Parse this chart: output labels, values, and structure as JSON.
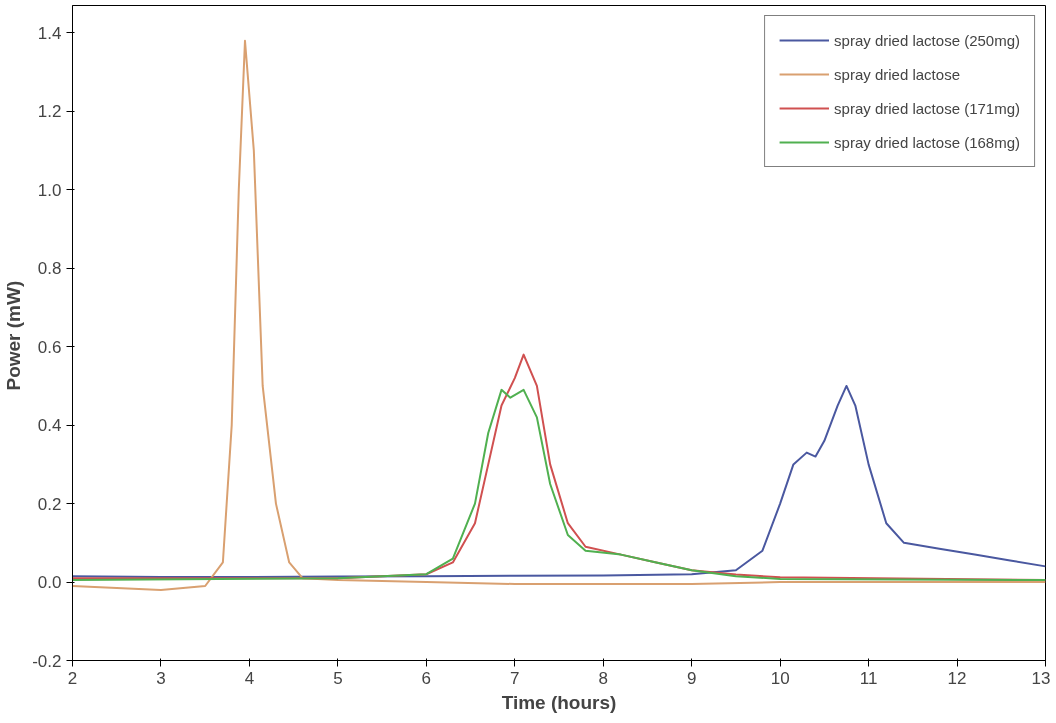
{
  "chart_data": {
    "type": "line",
    "xlabel": "Time (hours)",
    "ylabel": "Power  (mW)",
    "xlim": [
      2,
      13
    ],
    "ylim": [
      -0.2,
      1.47
    ],
    "xticks": [
      2,
      3,
      4,
      5,
      6,
      7,
      8,
      9,
      10,
      11,
      12,
      13
    ],
    "yticks": [
      {
        "value": -0.2,
        "label": "-0.2"
      },
      {
        "value": 0,
        "label": "0.0"
      },
      {
        "value": 0.2,
        "label": "0.2"
      },
      {
        "value": 0.4,
        "label": "0.4"
      },
      {
        "value": 0.6,
        "label": "0.6"
      },
      {
        "value": 0.8,
        "label": "0.8"
      },
      {
        "value": 1.0,
        "label": "1.0"
      },
      {
        "value": 1.2,
        "label": "1.2"
      },
      {
        "value": 1.4,
        "label": "1.4"
      }
    ],
    "grid": false,
    "legend": "top right",
    "marker": "none",
    "line_style": "solid",
    "series": [
      {
        "name": "spray dried lactose (250mg)",
        "color": "#4a58a0",
        "x": [
          2,
          3,
          4,
          5,
          6,
          7,
          8,
          9,
          9.5,
          9.8,
          10.0,
          10.15,
          10.3,
          10.4,
          10.5,
          10.65,
          10.75,
          10.85,
          11.0,
          11.2,
          11.4,
          11.8,
          12.2,
          12.6,
          13
        ],
        "values": [
          0.015,
          0.013,
          0.013,
          0.014,
          0.015,
          0.016,
          0.017,
          0.02,
          0.03,
          0.08,
          0.2,
          0.3,
          0.33,
          0.32,
          0.36,
          0.45,
          0.5,
          0.45,
          0.3,
          0.15,
          0.1,
          0.085,
          0.07,
          0.055,
          0.04
        ]
      },
      {
        "name": "spray dried lactose",
        "color": "#d9a070",
        "x": [
          2,
          2.5,
          3,
          3.5,
          3.7,
          3.8,
          3.88,
          3.95,
          4.05,
          4.15,
          4.3,
          4.45,
          4.6,
          5,
          6,
          7,
          9,
          10,
          13
        ],
        "values": [
          -0.01,
          -0.015,
          -0.02,
          -0.01,
          0.05,
          0.4,
          1.0,
          1.38,
          1.1,
          0.5,
          0.2,
          0.05,
          0.01,
          0.005,
          0.0,
          -0.005,
          -0.005,
          0.0,
          0.0
        ]
      },
      {
        "name": "spray dried lactose (171mg)",
        "color": "#d05050",
        "x": [
          2,
          5,
          6,
          6.3,
          6.55,
          6.7,
          6.85,
          7.0,
          7.1,
          7.25,
          7.4,
          7.6,
          7.8,
          8.2,
          8.6,
          9,
          9.5,
          10,
          13
        ],
        "values": [
          0.01,
          0.01,
          0.02,
          0.05,
          0.15,
          0.3,
          0.45,
          0.52,
          0.58,
          0.5,
          0.3,
          0.15,
          0.09,
          0.07,
          0.05,
          0.03,
          0.019,
          0.012,
          0.005
        ]
      },
      {
        "name": "spray dried lactose (168mg)",
        "color": "#50b050",
        "x": [
          2,
          5,
          6,
          6.3,
          6.55,
          6.7,
          6.85,
          6.95,
          7.1,
          7.25,
          7.4,
          7.6,
          7.8,
          8.2,
          8.6,
          9,
          9.5,
          10,
          13
        ],
        "values": [
          0.005,
          0.01,
          0.02,
          0.06,
          0.2,
          0.38,
          0.49,
          0.47,
          0.49,
          0.42,
          0.25,
          0.12,
          0.08,
          0.07,
          0.05,
          0.03,
          0.015,
          0.008,
          0.005
        ]
      }
    ]
  }
}
